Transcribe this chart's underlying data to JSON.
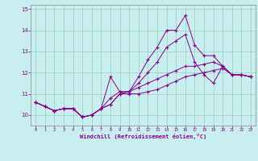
{
  "xlabel": "Windchill (Refroidissement éolien,°C)",
  "bg_color": "#c8eef0",
  "line_color": "#880088",
  "grid_color": "#99ccbb",
  "x_values": [
    0,
    1,
    2,
    3,
    4,
    5,
    6,
    7,
    8,
    9,
    10,
    11,
    12,
    13,
    14,
    15,
    16,
    17,
    18,
    19,
    20,
    21,
    22,
    23
  ],
  "series1": [
    10.6,
    10.4,
    10.2,
    10.3,
    10.3,
    9.9,
    10.0,
    10.3,
    11.8,
    11.1,
    11.1,
    11.8,
    12.6,
    13.2,
    14.0,
    14.0,
    14.7,
    13.3,
    12.8,
    12.8,
    12.3,
    11.9,
    11.9,
    11.8
  ],
  "series2": [
    10.6,
    10.4,
    10.2,
    10.3,
    10.3,
    9.9,
    10.0,
    10.3,
    10.5,
    11.0,
    11.1,
    11.3,
    11.5,
    11.7,
    11.9,
    12.1,
    12.3,
    12.3,
    12.4,
    12.5,
    12.3,
    11.9,
    11.9,
    11.8
  ],
  "series3": [
    10.6,
    10.4,
    10.2,
    10.3,
    10.3,
    9.9,
    10.0,
    10.3,
    10.8,
    11.1,
    11.1,
    11.5,
    12.0,
    12.5,
    13.2,
    13.5,
    13.8,
    12.5,
    11.9,
    11.5,
    12.3,
    11.9,
    11.9,
    11.8
  ],
  "series4": [
    10.6,
    10.4,
    10.2,
    10.3,
    10.3,
    9.9,
    10.0,
    10.3,
    10.5,
    11.0,
    11.0,
    11.0,
    11.1,
    11.2,
    11.4,
    11.6,
    11.8,
    11.9,
    12.0,
    12.1,
    12.2,
    11.9,
    11.9,
    11.8
  ],
  "ylim": [
    9.5,
    15.2
  ],
  "xlim": [
    -0.5,
    23.5
  ],
  "yticks": [
    10,
    11,
    12,
    13,
    14,
    15
  ],
  "xticks": [
    0,
    1,
    2,
    3,
    4,
    5,
    6,
    7,
    8,
    9,
    10,
    11,
    12,
    13,
    14,
    15,
    16,
    17,
    18,
    19,
    20,
    21,
    22,
    23
  ]
}
